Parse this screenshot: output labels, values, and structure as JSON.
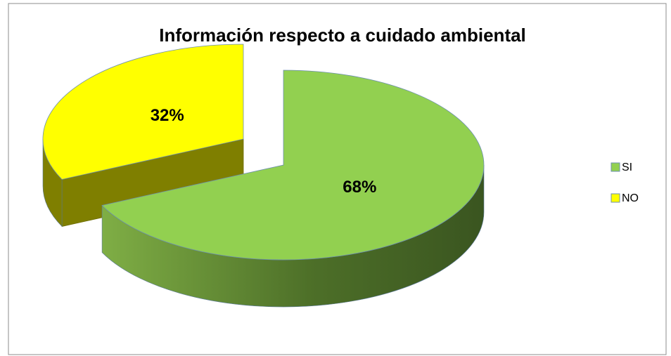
{
  "chart_data": {
    "type": "pie",
    "title": "Información respecto a cuidado ambiental",
    "categories": [
      "SI",
      "NO"
    ],
    "values": [
      68,
      32
    ],
    "value_labels": [
      "68%",
      "32%"
    ],
    "colors": [
      "#92d050",
      "#ffff00"
    ],
    "legend": "right"
  }
}
